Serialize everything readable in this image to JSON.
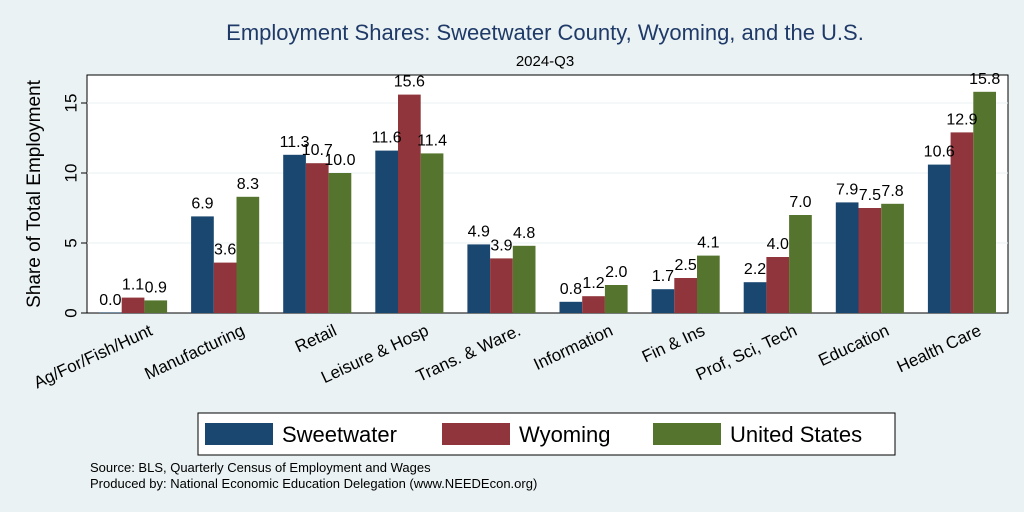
{
  "chart_data": {
    "type": "bar",
    "title": "Employment Shares: Sweetwater County, Wyoming, and the U.S.",
    "subtitle": "2024-Q3",
    "ylabel": "Share of Total Employment",
    "xlabel": "",
    "ylim": [
      0,
      17
    ],
    "yticks": [
      0,
      5,
      10,
      15
    ],
    "grid": true,
    "legend_position": "bottom",
    "categories": [
      "Ag/For/Fish/Hunt",
      "Manufacturing",
      "Retail",
      "Leisure & Hosp",
      "Trans. & Ware.",
      "Information",
      "Fin & Ins",
      "Prof, Sci, Tech",
      "Education",
      "Health Care"
    ],
    "series": [
      {
        "name": "Sweetwater",
        "color": "#1a476f",
        "values": [
          0.0,
          6.9,
          11.3,
          11.6,
          4.9,
          0.8,
          1.7,
          2.2,
          7.9,
          10.6
        ],
        "labels": [
          "0.0",
          "6.9",
          "11.3",
          "11.6",
          "4.9",
          "0.8",
          "1.7",
          "2.2",
          "7.9",
          "10.6"
        ]
      },
      {
        "name": "Wyoming",
        "color": "#90353b",
        "values": [
          1.1,
          3.6,
          10.7,
          15.6,
          3.9,
          1.2,
          2.5,
          4.0,
          7.5,
          12.9
        ],
        "labels": [
          "1.1",
          "3.6",
          "10.7",
          "15.6",
          "3.9",
          "1.2",
          "2.5",
          "4.0",
          "7.5",
          "12.9"
        ]
      },
      {
        "name": "United States",
        "color": "#55752f",
        "values": [
          0.9,
          8.3,
          10.0,
          11.4,
          4.8,
          2.0,
          4.1,
          7.0,
          7.8,
          15.8
        ],
        "labels": [
          "0.9",
          "8.3",
          "10.0",
          "11.4",
          "4.8",
          "2.0",
          "4.1",
          "7.0",
          "7.8",
          "15.8"
        ]
      }
    ]
  },
  "notes": {
    "source": "Source: BLS, Quarterly Census of Employment and Wages",
    "produced": "Produced by: National Economic Education Delegation (www.NEEDEcon.org)"
  }
}
